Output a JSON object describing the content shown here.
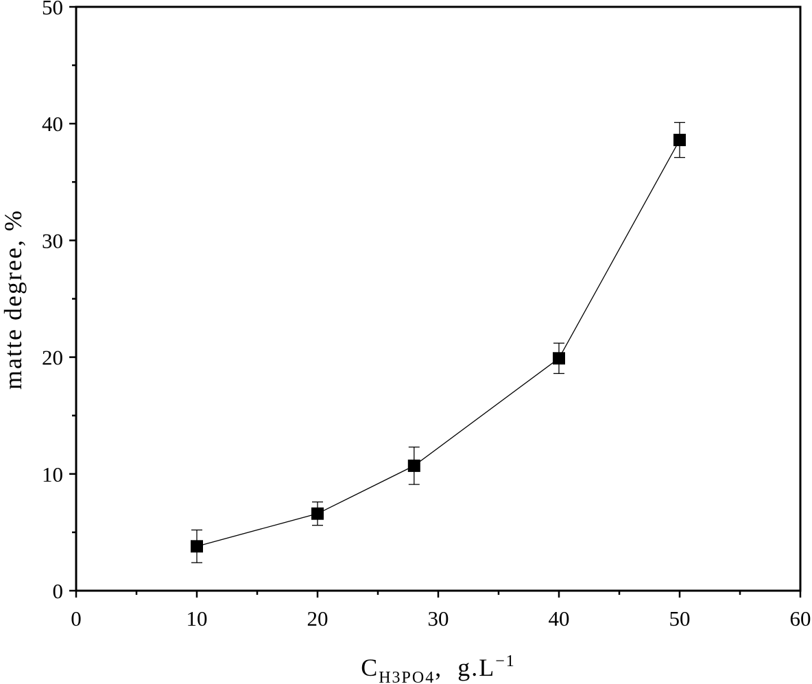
{
  "chart_data": {
    "type": "scatter",
    "title": "",
    "xlabel": {
      "main": "C",
      "subscript": "H3PO4",
      "rest": ",  g.L",
      "superscript": "−1"
    },
    "ylabel": "matte degree, %",
    "xlim": [
      0,
      60
    ],
    "ylim": [
      0,
      50
    ],
    "x_ticks": [
      0,
      10,
      20,
      30,
      40,
      50,
      60
    ],
    "x_tick_labels": [
      "0",
      "10",
      "20",
      "30",
      "40",
      "50",
      "60"
    ],
    "y_ticks": [
      0,
      10,
      20,
      30,
      40,
      50
    ],
    "y_tick_labels": [
      "0",
      "10",
      "20",
      "30",
      "40",
      "50"
    ],
    "grid": false,
    "marker": "filled-square",
    "connected": true,
    "color": "#000000",
    "series": [
      {
        "x": [
          10,
          20,
          28,
          40,
          50
        ],
        "y": [
          3.8,
          6.6,
          10.7,
          19.9,
          38.6
        ],
        "error": [
          1.4,
          1.0,
          1.6,
          1.3,
          1.5
        ]
      }
    ]
  }
}
